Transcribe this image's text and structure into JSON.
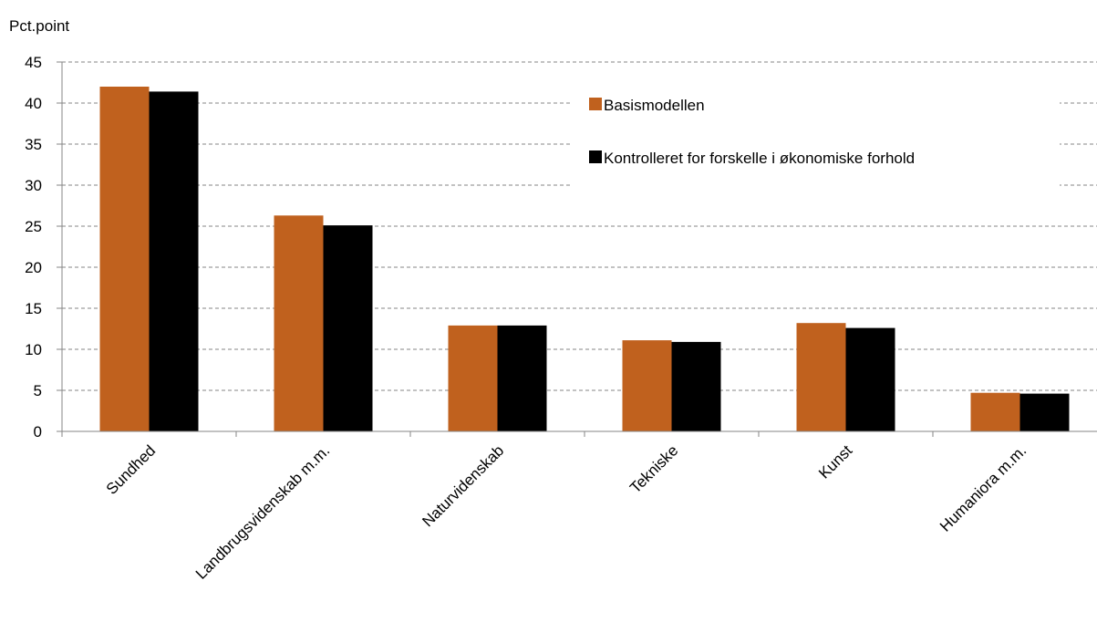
{
  "chart_data": {
    "type": "bar",
    "ylabel": "Pct.point",
    "ylim": [
      0,
      45
    ],
    "yticks": [
      0,
      5,
      10,
      15,
      20,
      25,
      30,
      35,
      40,
      45
    ],
    "grid": true,
    "legend_position": "top-right",
    "categories": [
      "Sundhed",
      "Landbrugsvidenskab m.m.",
      "Naturvidenskab",
      "Tekniske",
      "Kunst",
      "Humaniora m.m."
    ],
    "series": [
      {
        "name": "Basismodellen",
        "color": "#C0611E",
        "values": [
          42.0,
          26.3,
          12.9,
          11.1,
          13.2,
          4.7
        ]
      },
      {
        "name": "Kontrolleret for forskelle i økonomiske forhold",
        "color": "#000000",
        "values": [
          41.4,
          25.1,
          12.9,
          10.9,
          12.6,
          4.6
        ]
      }
    ]
  }
}
